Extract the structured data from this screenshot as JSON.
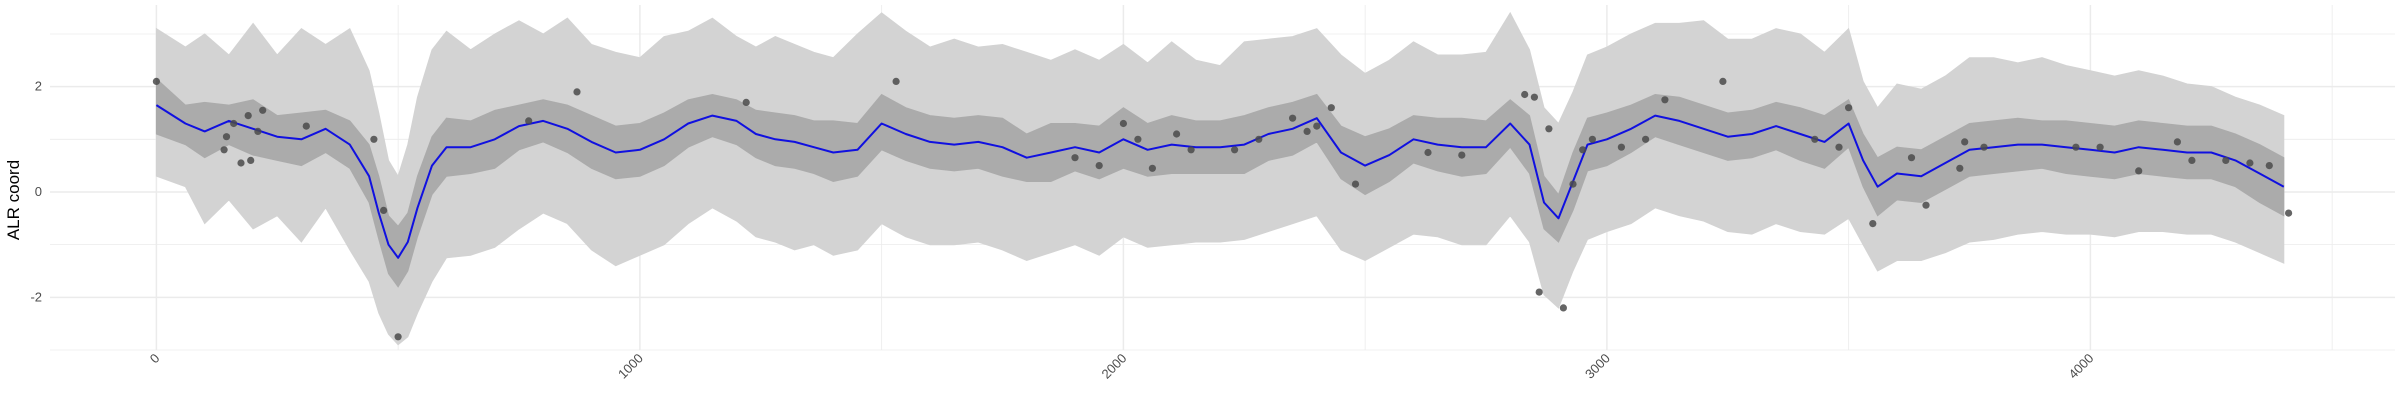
{
  "chart_data": {
    "type": "line",
    "title": "",
    "xlabel": "",
    "ylabel": "ALR coord",
    "xlim": [
      -220,
      4630
    ],
    "ylim": [
      -3.0,
      3.55
    ],
    "x_ticks": [
      0,
      1000,
      2000,
      3000,
      4000
    ],
    "y_ticks": [
      -2,
      0,
      2
    ],
    "x_tick_labels": [
      "0",
      "1000",
      "2000",
      "3000",
      "4000"
    ],
    "y_tick_labels": [
      "-2",
      "0",
      "2"
    ],
    "x_minor_ticks": [
      -500,
      500,
      1500,
      2500,
      3500,
      4500
    ],
    "y_minor_ticks": [
      -3,
      -1,
      1,
      3
    ],
    "grid": true,
    "legend": "none",
    "colors": {
      "mean_line": "#1010e0",
      "inner_band": "#ababab",
      "outer_band": "#d3d3d3",
      "points": "#4a4a4a",
      "grid": "#ebebeb"
    },
    "series": [
      {
        "role": "mean",
        "x": [
          0,
          60,
          100,
          150,
          200,
          250,
          300,
          350,
          400,
          440,
          460,
          480,
          500,
          520,
          540,
          570,
          600,
          650,
          700,
          750,
          800,
          850,
          900,
          950,
          1000,
          1050,
          1100,
          1150,
          1200,
          1240,
          1280,
          1320,
          1360,
          1400,
          1450,
          1500,
          1550,
          1600,
          1650,
          1700,
          1750,
          1800,
          1850,
          1900,
          1950,
          2000,
          2050,
          2100,
          2150,
          2200,
          2250,
          2300,
          2350,
          2400,
          2450,
          2500,
          2550,
          2600,
          2650,
          2700,
          2750,
          2800,
          2840,
          2870,
          2900,
          2930,
          2960,
          3000,
          3050,
          3100,
          3150,
          3200,
          3250,
          3300,
          3350,
          3400,
          3450,
          3500,
          3530,
          3560,
          3600,
          3650,
          3700,
          3750,
          3800,
          3850,
          3900,
          3950,
          4000,
          4050,
          4100,
          4150,
          4200,
          4250,
          4300,
          4350,
          4400
        ],
        "y": [
          1.65,
          1.3,
          1.15,
          1.35,
          1.2,
          1.05,
          1.0,
          1.2,
          0.9,
          0.3,
          -0.4,
          -1.0,
          -1.25,
          -0.95,
          -0.3,
          0.5,
          0.85,
          0.85,
          1.0,
          1.25,
          1.35,
          1.2,
          0.95,
          0.75,
          0.8,
          1.0,
          1.3,
          1.45,
          1.35,
          1.1,
          1.0,
          0.95,
          0.85,
          0.75,
          0.8,
          1.3,
          1.1,
          0.95,
          0.9,
          0.95,
          0.85,
          0.65,
          0.75,
          0.85,
          0.75,
          1.0,
          0.8,
          0.9,
          0.85,
          0.85,
          0.9,
          1.1,
          1.2,
          1.4,
          0.75,
          0.5,
          0.7,
          1.0,
          0.9,
          0.85,
          0.85,
          1.3,
          0.9,
          -0.2,
          -0.5,
          0.2,
          0.9,
          1.0,
          1.2,
          1.45,
          1.35,
          1.2,
          1.05,
          1.1,
          1.25,
          1.1,
          0.95,
          1.3,
          0.6,
          0.1,
          0.35,
          0.3,
          0.55,
          0.8,
          0.85,
          0.9,
          0.9,
          0.85,
          0.8,
          0.75,
          0.85,
          0.8,
          0.75,
          0.75,
          0.6,
          0.35,
          0.1
        ]
      },
      {
        "role": "inner-band",
        "x": [
          0,
          60,
          100,
          150,
          200,
          250,
          300,
          350,
          400,
          440,
          460,
          480,
          500,
          520,
          540,
          570,
          600,
          650,
          700,
          750,
          800,
          850,
          900,
          950,
          1000,
          1050,
          1100,
          1150,
          1200,
          1240,
          1280,
          1320,
          1360,
          1400,
          1450,
          1500,
          1550,
          1600,
          1650,
          1700,
          1750,
          1800,
          1850,
          1900,
          1950,
          2000,
          2050,
          2100,
          2150,
          2200,
          2250,
          2300,
          2350,
          2400,
          2450,
          2500,
          2550,
          2600,
          2650,
          2700,
          2750,
          2800,
          2840,
          2870,
          2900,
          2930,
          2960,
          3000,
          3050,
          3100,
          3150,
          3200,
          3250,
          3300,
          3350,
          3400,
          3450,
          3500,
          3530,
          3560,
          3600,
          3650,
          3700,
          3750,
          3800,
          3850,
          3900,
          3950,
          4000,
          4050,
          4100,
          4150,
          4200,
          4250,
          4300,
          4350,
          4400
        ],
        "upper": [
          2.15,
          1.65,
          1.7,
          1.65,
          1.75,
          1.45,
          1.5,
          1.55,
          1.35,
          0.9,
          0.3,
          -0.45,
          -0.65,
          -0.4,
          0.3,
          1.05,
          1.4,
          1.35,
          1.55,
          1.65,
          1.75,
          1.65,
          1.45,
          1.25,
          1.3,
          1.5,
          1.75,
          1.85,
          1.75,
          1.55,
          1.5,
          1.45,
          1.35,
          1.35,
          1.3,
          1.85,
          1.6,
          1.45,
          1.4,
          1.45,
          1.4,
          1.1,
          1.3,
          1.3,
          1.25,
          1.6,
          1.3,
          1.45,
          1.35,
          1.35,
          1.45,
          1.6,
          1.7,
          1.85,
          1.25,
          1.05,
          1.2,
          1.45,
          1.4,
          1.4,
          1.35,
          1.75,
          1.45,
          0.3,
          -0.05,
          0.75,
          1.4,
          1.5,
          1.65,
          1.85,
          1.8,
          1.65,
          1.5,
          1.55,
          1.7,
          1.6,
          1.45,
          1.75,
          1.1,
          0.65,
          0.85,
          0.8,
          1.05,
          1.3,
          1.35,
          1.4,
          1.35,
          1.35,
          1.3,
          1.25,
          1.35,
          1.3,
          1.25,
          1.25,
          1.1,
          0.9,
          0.65
        ],
        "lower": [
          1.1,
          0.9,
          0.65,
          0.9,
          0.7,
          0.6,
          0.5,
          0.75,
          0.45,
          -0.2,
          -0.9,
          -1.55,
          -1.8,
          -1.5,
          -0.85,
          -0.05,
          0.3,
          0.35,
          0.45,
          0.8,
          0.95,
          0.75,
          0.45,
          0.25,
          0.3,
          0.5,
          0.85,
          1.05,
          0.9,
          0.65,
          0.5,
          0.45,
          0.35,
          0.2,
          0.3,
          0.8,
          0.6,
          0.45,
          0.4,
          0.45,
          0.3,
          0.2,
          0.2,
          0.4,
          0.25,
          0.45,
          0.3,
          0.35,
          0.35,
          0.35,
          0.35,
          0.6,
          0.7,
          0.95,
          0.25,
          -0.05,
          0.2,
          0.55,
          0.4,
          0.3,
          0.35,
          0.85,
          0.35,
          -0.7,
          -0.95,
          -0.35,
          0.4,
          0.5,
          0.75,
          1.05,
          0.9,
          0.75,
          0.6,
          0.65,
          0.8,
          0.6,
          0.45,
          0.85,
          0.1,
          -0.45,
          -0.15,
          -0.2,
          0.05,
          0.3,
          0.35,
          0.4,
          0.45,
          0.35,
          0.3,
          0.25,
          0.35,
          0.3,
          0.25,
          0.25,
          0.1,
          -0.2,
          -0.45
        ]
      },
      {
        "role": "outer-band",
        "x": [
          0,
          60,
          100,
          150,
          200,
          250,
          300,
          350,
          400,
          440,
          460,
          480,
          500,
          520,
          540,
          570,
          600,
          650,
          700,
          750,
          800,
          850,
          900,
          950,
          1000,
          1050,
          1100,
          1150,
          1200,
          1240,
          1280,
          1320,
          1360,
          1400,
          1450,
          1500,
          1550,
          1600,
          1650,
          1700,
          1750,
          1800,
          1850,
          1900,
          1950,
          2000,
          2050,
          2100,
          2150,
          2200,
          2250,
          2300,
          2350,
          2400,
          2450,
          2500,
          2550,
          2600,
          2650,
          2700,
          2750,
          2800,
          2840,
          2870,
          2900,
          2930,
          2960,
          3000,
          3050,
          3100,
          3150,
          3200,
          3250,
          3300,
          3350,
          3400,
          3450,
          3500,
          3530,
          3560,
          3600,
          3650,
          3700,
          3750,
          3800,
          3850,
          3900,
          3950,
          4000,
          4050,
          4100,
          4150,
          4200,
          4250,
          4300,
          4350,
          4400
        ],
        "upper": [
          3.1,
          2.75,
          3.0,
          2.6,
          3.2,
          2.6,
          3.1,
          2.8,
          3.1,
          2.3,
          1.5,
          0.6,
          0.3,
          0.9,
          1.8,
          2.7,
          3.05,
          2.7,
          3.0,
          3.25,
          3.0,
          3.3,
          2.8,
          2.65,
          2.55,
          2.95,
          3.05,
          3.3,
          2.95,
          2.75,
          2.95,
          2.8,
          2.65,
          2.55,
          3.0,
          3.4,
          3.05,
          2.75,
          2.9,
          2.75,
          2.8,
          2.65,
          2.5,
          2.7,
          2.5,
          2.8,
          2.45,
          2.85,
          2.5,
          2.4,
          2.85,
          2.9,
          2.95,
          3.1,
          2.6,
          2.25,
          2.5,
          2.85,
          2.6,
          2.6,
          2.65,
          3.4,
          2.7,
          1.6,
          1.3,
          1.9,
          2.6,
          2.75,
          3.0,
          3.2,
          3.2,
          3.25,
          2.9,
          2.9,
          3.1,
          3.0,
          2.65,
          3.1,
          2.1,
          1.6,
          2.05,
          1.95,
          2.2,
          2.55,
          2.55,
          2.45,
          2.55,
          2.4,
          2.3,
          2.2,
          2.3,
          2.2,
          2.05,
          2.0,
          1.8,
          1.65,
          1.45
        ],
        "lower": [
          0.3,
          0.1,
          -0.6,
          -0.15,
          -0.7,
          -0.45,
          -0.95,
          -0.3,
          -1.1,
          -1.7,
          -2.3,
          -2.7,
          -2.9,
          -2.75,
          -2.3,
          -1.7,
          -1.25,
          -1.2,
          -1.05,
          -0.7,
          -0.4,
          -0.6,
          -1.1,
          -1.4,
          -1.2,
          -1.0,
          -0.6,
          -0.3,
          -0.55,
          -0.85,
          -0.95,
          -1.1,
          -1.0,
          -1.2,
          -1.1,
          -0.6,
          -0.85,
          -1.0,
          -1.0,
          -0.95,
          -1.1,
          -1.3,
          -1.15,
          -1.0,
          -1.2,
          -0.85,
          -1.05,
          -1.0,
          -0.95,
          -0.95,
          -0.9,
          -0.75,
          -0.6,
          -0.45,
          -1.1,
          -1.3,
          -1.05,
          -0.8,
          -0.85,
          -1.0,
          -1.0,
          -0.45,
          -0.95,
          -1.95,
          -2.2,
          -1.5,
          -0.9,
          -0.75,
          -0.6,
          -0.3,
          -0.45,
          -0.55,
          -0.75,
          -0.8,
          -0.6,
          -0.75,
          -0.8,
          -0.5,
          -1.0,
          -1.5,
          -1.3,
          -1.3,
          -1.15,
          -0.95,
          -0.9,
          -0.8,
          -0.75,
          -0.8,
          -0.8,
          -0.85,
          -0.75,
          -0.75,
          -0.8,
          -0.8,
          -0.95,
          -1.15,
          -1.35
        ]
      },
      {
        "role": "observations",
        "x": [
          0,
          140,
          145,
          160,
          175,
          190,
          195,
          210,
          220,
          310,
          450,
          470,
          500,
          770,
          870,
          1220,
          1530,
          1900,
          1950,
          2000,
          2030,
          2060,
          2110,
          2140,
          2230,
          2280,
          2350,
          2380,
          2400,
          2430,
          2480,
          2630,
          2700,
          2830,
          2850,
          2860,
          2880,
          2910,
          2930,
          2950,
          2970,
          3030,
          3080,
          3120,
          3240,
          3430,
          3480,
          3500,
          3550,
          3630,
          3660,
          3730,
          3740,
          3780,
          3970,
          4020,
          4100,
          4180,
          4210,
          4280,
          4330,
          4370,
          4410
        ],
        "y": [
          2.1,
          0.8,
          1.05,
          1.3,
          0.55,
          1.45,
          0.6,
          1.15,
          1.55,
          1.25,
          1.0,
          -0.35,
          -2.75,
          1.35,
          1.9,
          1.7,
          2.1,
          0.65,
          0.5,
          1.3,
          1.0,
          0.45,
          1.1,
          0.8,
          0.8,
          1.0,
          1.4,
          1.15,
          1.25,
          1.6,
          0.15,
          0.75,
          0.7,
          1.85,
          1.8,
          -1.9,
          1.2,
          -2.2,
          0.15,
          0.8,
          1.0,
          0.85,
          1.0,
          1.75,
          2.1,
          1.0,
          0.85,
          1.6,
          -0.6,
          0.65,
          -0.25,
          0.45,
          0.95,
          0.85,
          0.85,
          0.85,
          0.4,
          0.95,
          0.6,
          0.6,
          0.55,
          0.5,
          -0.4
        ]
      }
    ]
  }
}
